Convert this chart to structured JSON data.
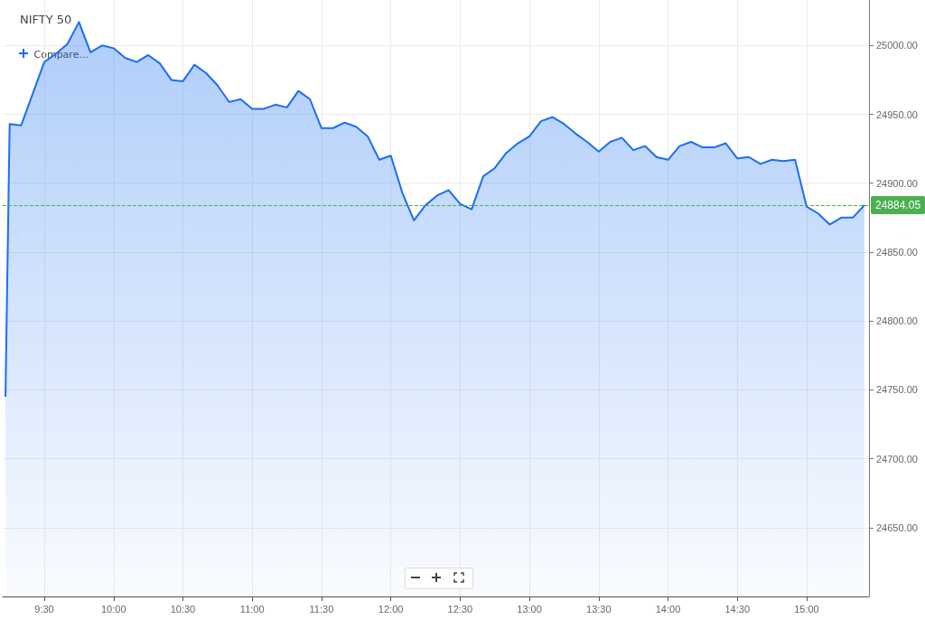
{
  "chart_data": {
    "type": "area",
    "title": "NIFTY 50",
    "annotations": [
      "Compare..."
    ],
    "x": [
      9.22,
      9.25,
      9.3333,
      9.4167,
      9.5,
      9.5833,
      9.6667,
      9.75,
      9.8333,
      9.9167,
      10,
      10.0833,
      10.1667,
      10.25,
      10.3333,
      10.4167,
      10.5,
      10.5833,
      10.6667,
      10.75,
      10.8333,
      10.9167,
      11,
      11.0833,
      11.1667,
      11.25,
      11.3333,
      11.4167,
      11.5,
      11.5833,
      11.6667,
      11.75,
      11.8333,
      11.9167,
      12,
      12.0833,
      12.1667,
      12.25,
      12.3333,
      12.4167,
      12.5,
      12.5833,
      12.6667,
      12.75,
      12.8333,
      12.9167,
      13,
      13.0833,
      13.1667,
      13.25,
      13.3333,
      13.4167,
      13.5,
      13.5833,
      13.6667,
      13.75,
      13.8333,
      13.9167,
      14,
      14.0833,
      14.1667,
      14.25,
      14.3333,
      14.4167,
      14.5,
      14.5833,
      14.6667,
      14.75,
      14.8333,
      14.9167,
      15,
      15.0833,
      15.1667,
      15.25,
      15.3333,
      15.4167
    ],
    "series": [
      {
        "color": "#1a6ff2",
        "values": [
          24745,
          24943,
          24942,
          24965,
          24988,
          24994,
          25001,
          25017,
          24995,
          25000,
          24998,
          24991,
          24988,
          24993,
          24987,
          24975,
          24974,
          24986,
          24980,
          24971,
          24959,
          24961,
          24954,
          24954,
          24957,
          24955,
          24967,
          24961,
          24940,
          24940,
          24944,
          24941,
          24934,
          24917,
          24920,
          24893,
          24873,
          24884,
          24891,
          24895,
          24885,
          24881,
          24905,
          24911,
          24922,
          24929,
          24934,
          24945,
          24948,
          24943,
          24936,
          24930,
          24923,
          24930,
          24933,
          24924,
          24927,
          24919,
          24917,
          24927,
          24930,
          24926,
          24926,
          24929,
          24918,
          24919,
          24914,
          24917,
          24916,
          24917,
          24883,
          24878,
          24870,
          24875,
          24875,
          24884.05
        ]
      }
    ],
    "xlim": [
      9.2,
      15.45
    ],
    "ylim": [
      24600,
      25033
    ],
    "xticks": [
      {
        "value": 9.5,
        "label": "9:30"
      },
      {
        "value": 10,
        "label": "10:00"
      },
      {
        "value": 10.5,
        "label": "10:30"
      },
      {
        "value": 11,
        "label": "11:00"
      },
      {
        "value": 11.5,
        "label": "11:30"
      },
      {
        "value": 12,
        "label": "12:00"
      },
      {
        "value": 12.5,
        "label": "12:30"
      },
      {
        "value": 13,
        "label": "13:00"
      },
      {
        "value": 13.5,
        "label": "13:30"
      },
      {
        "value": 14,
        "label": "14:00"
      },
      {
        "value": 14.5,
        "label": "14:30"
      },
      {
        "value": 15,
        "label": "15:00"
      }
    ],
    "yticks": [
      {
        "value": 24650,
        "label": "24650.00"
      },
      {
        "value": 24700,
        "label": "24700.00"
      },
      {
        "value": 24750,
        "label": "24750.00"
      },
      {
        "value": 24800,
        "label": "24800.00"
      },
      {
        "value": 24850,
        "label": "24850.00"
      },
      {
        "value": 24900,
        "label": "24900.00"
      },
      {
        "value": 24950,
        "label": "24950.00"
      },
      {
        "value": 25000,
        "label": "25000.00"
      }
    ],
    "grid": true,
    "marker": "none",
    "ref_lines": [
      {
        "axis": "y",
        "value": 24884.05,
        "label": "24884.05",
        "color": "#4caf50",
        "line_style": "dashed"
      }
    ]
  }
}
